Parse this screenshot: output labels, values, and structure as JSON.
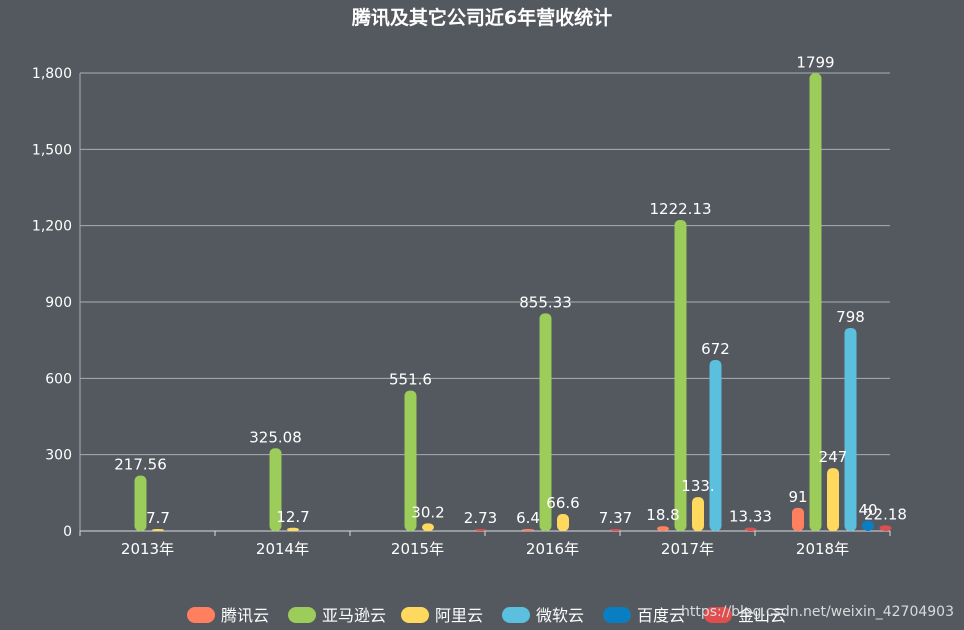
{
  "chart_data": {
    "type": "bar",
    "title": "腾讯及其它公司近6年营收统计",
    "categories": [
      "2013年",
      "2014年",
      "2015年",
      "2016年",
      "2017年",
      "2018年"
    ],
    "ylim": [
      0,
      1800
    ],
    "ytick_labels": [
      "0",
      "300",
      "600",
      "900",
      "1,200",
      "1,500",
      "1,800"
    ],
    "grid": true,
    "legend_position": "bottom",
    "series": [
      {
        "name": "腾讯云",
        "color": "#ff7f5e",
        "values": [
          null,
          null,
          null,
          6.4,
          18.8,
          91
        ],
        "labels": [
          "",
          "",
          "",
          "6.4",
          "18.8",
          "91"
        ]
      },
      {
        "name": "亚马逊云",
        "color": "#9ccc5a",
        "values": [
          217.56,
          325.08,
          551.6,
          855.33,
          1222.13,
          1799
        ],
        "labels": [
          "217.56",
          "325.08",
          "551.6",
          "855.33",
          "1222.13",
          "1799"
        ]
      },
      {
        "name": "阿里云",
        "color": "#ffd85e",
        "values": [
          7.7,
          12.7,
          30.2,
          66.6,
          133,
          247
        ],
        "labels": [
          "7.7",
          "12.7",
          "30.2",
          "66.6",
          "133.",
          "247"
        ]
      },
      {
        "name": "微软云",
        "color": "#5bc0de",
        "values": [
          null,
          null,
          null,
          null,
          672,
          798
        ],
        "labels": [
          "",
          "",
          "",
          "",
          "672",
          "798"
        ]
      },
      {
        "name": "百度云",
        "color": "#0a7ec2",
        "values": [
          null,
          null,
          null,
          null,
          null,
          40
        ],
        "labels": [
          "",
          "",
          "",
          "",
          "",
          "40"
        ]
      },
      {
        "name": "金山云",
        "color": "#e04d4d",
        "values": [
          null,
          null,
          2.73,
          7.37,
          13.33,
          22.18
        ],
        "labels": [
          "",
          "",
          "2.73",
          "7.37",
          "13.33",
          "22.18"
        ]
      }
    ]
  },
  "watermark": "https://blog.csdn.net/weixin_42704903"
}
